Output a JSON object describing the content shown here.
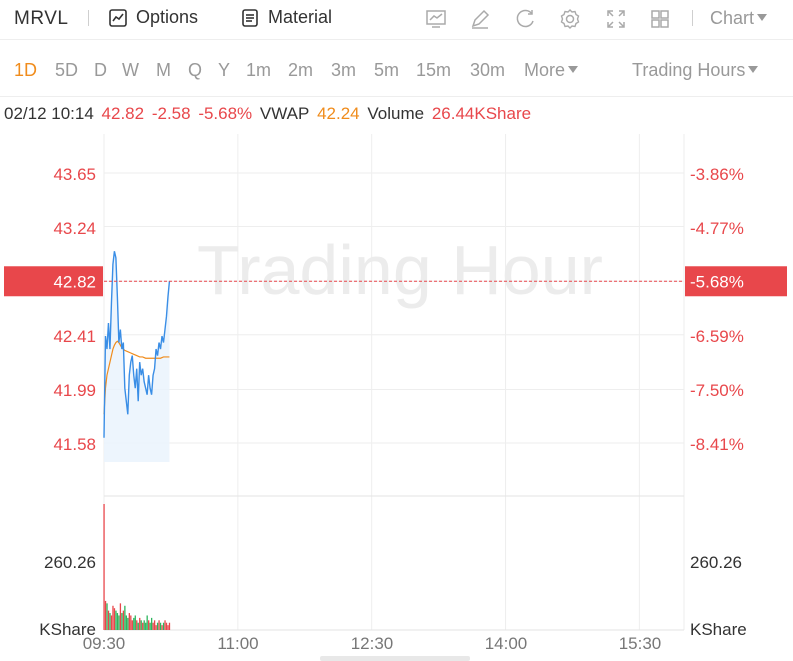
{
  "header": {
    "ticker": "MRVL",
    "options_label": "Options",
    "material_label": "Material",
    "chart_label": "Chart",
    "tools": [
      "indicator-icon",
      "draw-icon",
      "refresh-icon",
      "settings-icon",
      "fullscreen-icon",
      "layout-icon"
    ]
  },
  "periods": {
    "items": [
      "1D",
      "5D",
      "D",
      "W",
      "M",
      "Q",
      "Y",
      "1m",
      "2m",
      "3m",
      "5m",
      "15m",
      "30m"
    ],
    "active": "1D",
    "more_label": "More",
    "trading_hours_label": "Trading Hours"
  },
  "info": {
    "datetime": "02/12 10:14",
    "price": "42.82",
    "change": "-2.58",
    "change_pct": "-5.68%",
    "vwap_label": "VWAP",
    "vwap": "42.24",
    "volume_label": "Volume",
    "volume": "26.44KShare"
  },
  "colors": {
    "up": "#e8474b",
    "down": "#2db55d",
    "price_line": "#3a8ee6",
    "vwap_line": "#f08c1c",
    "grid": "#eeeeee"
  },
  "chart_data": {
    "type": "line",
    "watermark": "Trading Hour",
    "price_axis": {
      "ticks": [
        43.65,
        43.24,
        42.82,
        42.41,
        41.99,
        41.58
      ],
      "tick_labels": [
        "43.65",
        "43.24",
        "42.82",
        "42.41",
        "41.99",
        "41.58"
      ],
      "current": 42.82,
      "current_label": "42.82"
    },
    "percent_axis": {
      "tick_labels": [
        "-3.86%",
        "-4.77%",
        "-5.68%",
        "-6.59%",
        "-7.50%",
        "-8.41%"
      ],
      "current_label": "-5.68%"
    },
    "volume_axis": {
      "tick_label": "260.26",
      "unit_label": "KShare",
      "max": 520
    },
    "x_axis": {
      "tick_labels": [
        "09:30",
        "11:00",
        "12:30",
        "14:00",
        "15:30"
      ]
    },
    "series": [
      {
        "name": "Price",
        "minutes": [
          0,
          1,
          2,
          3,
          4,
          5,
          6,
          7,
          8,
          9,
          10,
          11,
          12,
          13,
          14,
          15,
          16,
          17,
          18,
          19,
          20,
          21,
          22,
          23,
          24,
          25,
          26,
          27,
          28,
          29,
          30,
          31,
          32,
          33,
          34,
          35,
          36,
          37,
          38,
          39,
          40,
          41,
          42,
          43,
          44
        ],
        "values": [
          41.62,
          42.4,
          42.3,
          42.5,
          42.3,
          42.65,
          42.95,
          43.05,
          43.0,
          42.7,
          42.35,
          42.45,
          42.3,
          42.35,
          42.0,
          41.9,
          41.8,
          42.1,
          42.2,
          42.25,
          42.1,
          42.0,
          42.15,
          41.9,
          42.2,
          42.1,
          42.15,
          42.05,
          42.0,
          41.95,
          42.1,
          42.0,
          41.95,
          42.1,
          42.15,
          42.3,
          42.25,
          42.35,
          42.3,
          42.4,
          42.35,
          42.45,
          42.55,
          42.7,
          42.82
        ]
      },
      {
        "name": "VWAP",
        "minutes": [
          0,
          1,
          2,
          3,
          4,
          5,
          6,
          7,
          8,
          9,
          10,
          11,
          12,
          13,
          14,
          16,
          18,
          20,
          22,
          24,
          26,
          28,
          30,
          32,
          34,
          36,
          38,
          40,
          42,
          44
        ],
        "values": [
          41.8,
          42.0,
          42.1,
          42.15,
          42.2,
          42.25,
          42.3,
          42.33,
          42.35,
          42.36,
          42.35,
          42.33,
          42.31,
          42.3,
          42.29,
          42.28,
          42.27,
          42.26,
          42.25,
          42.24,
          42.24,
          42.23,
          42.23,
          42.23,
          42.23,
          42.23,
          42.23,
          42.24,
          42.24,
          42.24
        ]
      }
    ],
    "volume": {
      "minutes": [
        0,
        1,
        2,
        3,
        4,
        5,
        6,
        7,
        8,
        9,
        10,
        11,
        12,
        13,
        14,
        15,
        16,
        17,
        18,
        19,
        20,
        21,
        22,
        23,
        24,
        25,
        26,
        27,
        28,
        29,
        30,
        31,
        32,
        33,
        34,
        35,
        36,
        37,
        38,
        39,
        40,
        41,
        42,
        43,
        44
      ],
      "values": [
        520,
        120,
        110,
        80,
        70,
        60,
        100,
        90,
        80,
        70,
        60,
        110,
        70,
        80,
        100,
        60,
        50,
        70,
        60,
        40,
        50,
        60,
        40,
        30,
        50,
        40,
        30,
        40,
        30,
        60,
        40,
        30,
        50,
        30,
        40,
        20,
        30,
        40,
        30,
        20,
        30,
        40,
        30,
        20,
        30
      ],
      "up": [
        true,
        true,
        false,
        true,
        false,
        true,
        true,
        true,
        false,
        false,
        false,
        true,
        false,
        true,
        false,
        false,
        false,
        true,
        true,
        true,
        false,
        false,
        true,
        false,
        true,
        false,
        true,
        false,
        false,
        false,
        true,
        false,
        false,
        true,
        true,
        true,
        false,
        true,
        false,
        true,
        false,
        true,
        true,
        true,
        true
      ]
    }
  }
}
